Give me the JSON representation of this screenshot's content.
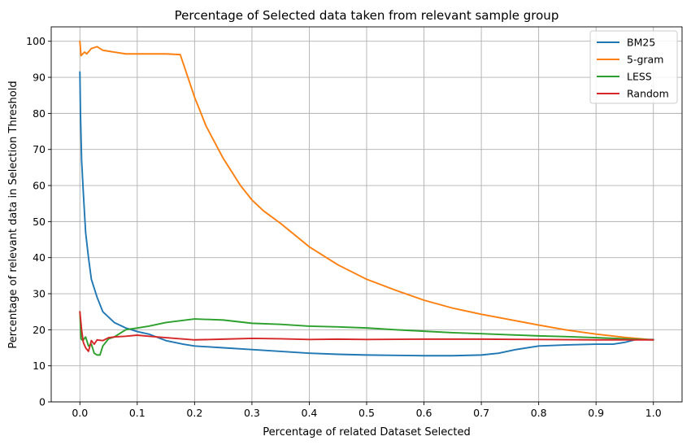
{
  "chart_data": {
    "type": "line",
    "title": "Percentage of Selected data taken from relevant sample group",
    "xlabel": "Percentage of related Dataset Selected",
    "ylabel": "Percentage of relevant data in Selection Threshold",
    "xlim": [
      -0.05,
      1.05
    ],
    "ylim": [
      0,
      104
    ],
    "xticks": [
      "0.0",
      "0.1",
      "0.2",
      "0.3",
      "0.4",
      "0.5",
      "0.6",
      "0.7",
      "0.8",
      "0.9",
      "1.0"
    ],
    "xtick_values": [
      0.0,
      0.1,
      0.2,
      0.3,
      0.4,
      0.5,
      0.6,
      0.7,
      0.8,
      0.9,
      1.0
    ],
    "yticks": [
      "0",
      "10",
      "20",
      "30",
      "40",
      "50",
      "60",
      "70",
      "80",
      "90",
      "100"
    ],
    "ytick_values": [
      0,
      10,
      20,
      30,
      40,
      50,
      60,
      70,
      80,
      90,
      100
    ],
    "grid": true,
    "legend_position": "top-right",
    "series": [
      {
        "name": "BM25",
        "color": "#1f77b4",
        "points": [
          [
            0.0,
            91.5
          ],
          [
            0.001,
            80
          ],
          [
            0.003,
            67
          ],
          [
            0.006,
            58
          ],
          [
            0.01,
            47
          ],
          [
            0.015,
            40
          ],
          [
            0.02,
            34
          ],
          [
            0.03,
            29
          ],
          [
            0.04,
            25
          ],
          [
            0.05,
            23.5
          ],
          [
            0.06,
            22
          ],
          [
            0.08,
            20.5
          ],
          [
            0.1,
            19.5
          ],
          [
            0.12,
            18.8
          ],
          [
            0.15,
            17
          ],
          [
            0.18,
            16
          ],
          [
            0.2,
            15.5
          ],
          [
            0.25,
            15
          ],
          [
            0.3,
            14.5
          ],
          [
            0.35,
            14
          ],
          [
            0.4,
            13.5
          ],
          [
            0.45,
            13.2
          ],
          [
            0.5,
            13
          ],
          [
            0.55,
            12.9
          ],
          [
            0.6,
            12.8
          ],
          [
            0.65,
            12.8
          ],
          [
            0.7,
            13
          ],
          [
            0.73,
            13.5
          ],
          [
            0.76,
            14.5
          ],
          [
            0.8,
            15.5
          ],
          [
            0.85,
            15.8
          ],
          [
            0.9,
            16
          ],
          [
            0.93,
            16
          ],
          [
            0.95,
            16.5
          ],
          [
            0.97,
            17.3
          ],
          [
            1.0,
            17.3
          ]
        ]
      },
      {
        "name": "5-gram",
        "color": "#ff7f0e",
        "points": [
          [
            0.0,
            100
          ],
          [
            0.002,
            96
          ],
          [
            0.008,
            97
          ],
          [
            0.012,
            96.5
          ],
          [
            0.02,
            98
          ],
          [
            0.03,
            98.5
          ],
          [
            0.04,
            97.5
          ],
          [
            0.06,
            97
          ],
          [
            0.08,
            96.5
          ],
          [
            0.1,
            96.5
          ],
          [
            0.12,
            96.5
          ],
          [
            0.15,
            96.5
          ],
          [
            0.175,
            96.3
          ],
          [
            0.2,
            84.5
          ],
          [
            0.22,
            76.5
          ],
          [
            0.25,
            67.5
          ],
          [
            0.28,
            60
          ],
          [
            0.3,
            56
          ],
          [
            0.32,
            53
          ],
          [
            0.35,
            49.5
          ],
          [
            0.4,
            43
          ],
          [
            0.45,
            38
          ],
          [
            0.5,
            34
          ],
          [
            0.55,
            31
          ],
          [
            0.6,
            28.2
          ],
          [
            0.65,
            26
          ],
          [
            0.7,
            24.3
          ],
          [
            0.75,
            22.8
          ],
          [
            0.8,
            21.3
          ],
          [
            0.85,
            19.9
          ],
          [
            0.9,
            18.8
          ],
          [
            0.95,
            17.9
          ],
          [
            1.0,
            17.2
          ]
        ]
      },
      {
        "name": "LESS",
        "color": "#2ca02c",
        "points": [
          [
            0.0,
            25
          ],
          [
            0.002,
            17.5
          ],
          [
            0.005,
            17
          ],
          [
            0.01,
            18
          ],
          [
            0.015,
            15.5
          ],
          [
            0.02,
            16
          ],
          [
            0.025,
            13.5
          ],
          [
            0.03,
            13
          ],
          [
            0.035,
            13
          ],
          [
            0.04,
            15.5
          ],
          [
            0.05,
            17.5
          ],
          [
            0.06,
            18
          ],
          [
            0.08,
            20
          ],
          [
            0.1,
            20.5
          ],
          [
            0.12,
            21
          ],
          [
            0.15,
            22
          ],
          [
            0.2,
            23
          ],
          [
            0.25,
            22.7
          ],
          [
            0.3,
            21.8
          ],
          [
            0.35,
            21.5
          ],
          [
            0.4,
            21
          ],
          [
            0.45,
            20.8
          ],
          [
            0.5,
            20.5
          ],
          [
            0.55,
            20
          ],
          [
            0.6,
            19.6
          ],
          [
            0.65,
            19.2
          ],
          [
            0.7,
            18.9
          ],
          [
            0.75,
            18.6
          ],
          [
            0.8,
            18.3
          ],
          [
            0.85,
            18.1
          ],
          [
            0.9,
            17.8
          ],
          [
            0.95,
            17.5
          ],
          [
            1.0,
            17.2
          ]
        ]
      },
      {
        "name": "Random",
        "color": "#d62728",
        "points": [
          [
            0.0,
            25
          ],
          [
            0.003,
            20
          ],
          [
            0.006,
            16.5
          ],
          [
            0.01,
            15
          ],
          [
            0.015,
            14
          ],
          [
            0.02,
            17
          ],
          [
            0.025,
            16
          ],
          [
            0.03,
            17.2
          ],
          [
            0.04,
            17
          ],
          [
            0.05,
            17.8
          ],
          [
            0.06,
            18
          ],
          [
            0.08,
            18.2
          ],
          [
            0.1,
            18.5
          ],
          [
            0.12,
            18.2
          ],
          [
            0.15,
            17.8
          ],
          [
            0.2,
            17.2
          ],
          [
            0.25,
            17.4
          ],
          [
            0.3,
            17.6
          ],
          [
            0.35,
            17.5
          ],
          [
            0.4,
            17.3
          ],
          [
            0.45,
            17.4
          ],
          [
            0.5,
            17.3
          ],
          [
            0.6,
            17.4
          ],
          [
            0.7,
            17.4
          ],
          [
            0.8,
            17.3
          ],
          [
            0.9,
            17.2
          ],
          [
            1.0,
            17.2
          ]
        ]
      }
    ]
  }
}
